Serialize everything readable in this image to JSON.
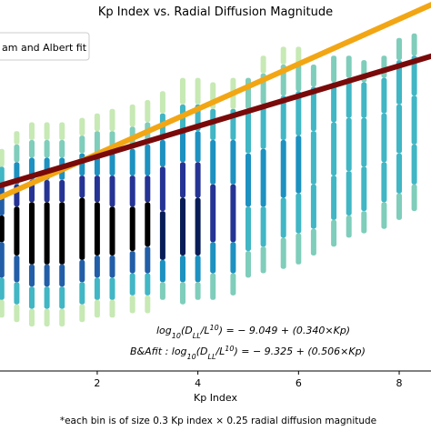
{
  "chart_data": {
    "type": "scatter",
    "title": "Kp Index vs. Radial Diffusion Magnitude",
    "xlabel": "Kp Index",
    "ylabel": "",
    "xlim": [
      0.05,
      8.65
    ],
    "ylim": [
      -13.2,
      -5.4
    ],
    "x_ticks": [
      2,
      4,
      6,
      8
    ],
    "x_tick_labels": [
      "2",
      "4",
      "6",
      "8"
    ],
    "grid": false,
    "legend": {
      "placement": "top-left",
      "entries": [
        "am and Albert fit"
      ]
    },
    "colorscale": [
      "#ffffcc",
      "#c7e9b4",
      "#7fcdbb",
      "#41b6c4",
      "#1d91c0",
      "#225ea8",
      "#253494",
      "#081d58",
      "#000000"
    ],
    "bin_size_note": "*each bin is of size 0.3 Kp index × 0.25 radial diffusion magnitude",
    "density_columns": [
      {
        "kp": 0.1,
        "segments": [
          [
            -12.0,
            -11.6,
            1
          ],
          [
            -11.6,
            -11.1,
            3
          ],
          [
            -11.1,
            -10.3,
            5
          ],
          [
            -10.3,
            -9.7,
            8
          ],
          [
            -9.7,
            -9.0,
            5
          ],
          [
            -9.0,
            -8.6,
            3
          ],
          [
            -8.6,
            -8.2,
            1
          ]
        ]
      },
      {
        "kp": 0.4,
        "segments": [
          [
            -12.1,
            -11.7,
            1
          ],
          [
            -11.7,
            -11.2,
            3
          ],
          [
            -11.2,
            -10.6,
            5
          ],
          [
            -10.6,
            -9.5,
            8
          ],
          [
            -9.5,
            -9.0,
            6
          ],
          [
            -9.0,
            -8.5,
            4
          ],
          [
            -8.5,
            -8.1,
            2
          ],
          [
            -8.1,
            -7.8,
            1
          ]
        ]
      },
      {
        "kp": 0.7,
        "segments": [
          [
            -12.2,
            -11.8,
            1
          ],
          [
            -11.8,
            -11.3,
            3
          ],
          [
            -11.3,
            -10.8,
            5
          ],
          [
            -10.8,
            -9.4,
            8
          ],
          [
            -9.4,
            -8.9,
            6
          ],
          [
            -8.9,
            -8.4,
            4
          ],
          [
            -8.4,
            -8.0,
            2
          ],
          [
            -8.0,
            -7.6,
            1
          ]
        ]
      },
      {
        "kp": 1.0,
        "segments": [
          [
            -12.2,
            -11.8,
            1
          ],
          [
            -11.8,
            -11.3,
            3
          ],
          [
            -11.3,
            -10.8,
            5
          ],
          [
            -10.8,
            -9.4,
            8
          ],
          [
            -9.4,
            -8.9,
            6
          ],
          [
            -8.9,
            -8.4,
            4
          ],
          [
            -8.4,
            -8.0,
            2
          ],
          [
            -8.0,
            -7.6,
            1
          ]
        ]
      },
      {
        "kp": 1.3,
        "segments": [
          [
            -12.2,
            -11.8,
            1
          ],
          [
            -11.8,
            -11.3,
            3
          ],
          [
            -11.3,
            -10.8,
            5
          ],
          [
            -10.8,
            -9.4,
            8
          ],
          [
            -9.4,
            -8.9,
            6
          ],
          [
            -8.9,
            -8.4,
            4
          ],
          [
            -8.4,
            -8.0,
            2
          ],
          [
            -8.0,
            -7.6,
            1
          ]
        ]
      },
      {
        "kp": 1.7,
        "segments": [
          [
            -12.1,
            -11.7,
            1
          ],
          [
            -11.7,
            -11.2,
            3
          ],
          [
            -11.2,
            -10.7,
            5
          ],
          [
            -10.7,
            -9.3,
            8
          ],
          [
            -9.3,
            -8.8,
            6
          ],
          [
            -8.8,
            -8.3,
            4
          ],
          [
            -8.3,
            -7.9,
            2
          ],
          [
            -7.9,
            -7.5,
            1
          ]
        ]
      },
      {
        "kp": 2.0,
        "segments": [
          [
            -12.0,
            -11.6,
            1
          ],
          [
            -11.6,
            -11.1,
            3
          ],
          [
            -11.1,
            -10.6,
            5
          ],
          [
            -10.6,
            -9.4,
            8
          ],
          [
            -9.4,
            -8.8,
            6
          ],
          [
            -8.8,
            -8.3,
            4
          ],
          [
            -8.3,
            -7.8,
            2
          ],
          [
            -7.8,
            -7.4,
            1
          ]
        ]
      },
      {
        "kp": 2.3,
        "segments": [
          [
            -12.0,
            -11.6,
            1
          ],
          [
            -11.6,
            -11.1,
            3
          ],
          [
            -11.1,
            -10.6,
            5
          ],
          [
            -10.6,
            -9.5,
            8
          ],
          [
            -9.5,
            -8.8,
            6
          ],
          [
            -8.8,
            -8.3,
            4
          ],
          [
            -8.3,
            -7.8,
            2
          ],
          [
            -7.8,
            -7.3,
            1
          ]
        ]
      },
      {
        "kp": 2.7,
        "segments": [
          [
            -11.9,
            -11.5,
            1
          ],
          [
            -11.5,
            -11.0,
            3
          ],
          [
            -11.0,
            -10.5,
            5
          ],
          [
            -10.5,
            -9.5,
            8
          ],
          [
            -9.5,
            -8.8,
            6
          ],
          [
            -8.8,
            -8.2,
            4
          ],
          [
            -8.2,
            -7.7,
            2
          ],
          [
            -7.7,
            -7.2,
            1
          ]
        ]
      },
      {
        "kp": 3.0,
        "segments": [
          [
            -11.9,
            -11.5,
            1
          ],
          [
            -11.5,
            -11.0,
            3
          ],
          [
            -11.0,
            -10.4,
            5
          ],
          [
            -10.4,
            -9.4,
            8
          ],
          [
            -9.4,
            -8.8,
            6
          ],
          [
            -8.8,
            -8.1,
            4
          ],
          [
            -8.1,
            -7.6,
            2
          ],
          [
            -7.6,
            -7.1,
            1
          ]
        ]
      },
      {
        "kp": 3.3,
        "segments": [
          [
            -11.6,
            -11.2,
            2
          ],
          [
            -11.2,
            -10.7,
            4
          ],
          [
            -10.7,
            -9.6,
            7
          ],
          [
            -9.6,
            -8.6,
            6
          ],
          [
            -8.6,
            -8.0,
            4
          ],
          [
            -8.0,
            -7.4,
            3
          ],
          [
            -7.4,
            -6.9,
            1
          ]
        ]
      },
      {
        "kp": 3.7,
        "segments": [
          [
            -11.7,
            -11.2,
            2
          ],
          [
            -11.2,
            -10.6,
            4
          ],
          [
            -10.6,
            -9.3,
            7
          ],
          [
            -9.3,
            -8.5,
            6
          ],
          [
            -8.5,
            -7.8,
            4
          ],
          [
            -7.8,
            -7.2,
            3
          ],
          [
            -7.2,
            -6.6,
            1
          ]
        ]
      },
      {
        "kp": 4.0,
        "segments": [
          [
            -11.6,
            -11.2,
            2
          ],
          [
            -11.2,
            -10.6,
            4
          ],
          [
            -10.6,
            -9.3,
            7
          ],
          [
            -9.3,
            -8.5,
            6
          ],
          [
            -8.5,
            -7.8,
            4
          ],
          [
            -7.8,
            -7.2,
            3
          ],
          [
            -7.2,
            -6.6,
            1
          ]
        ]
      },
      {
        "kp": 4.3,
        "segments": [
          [
            -11.6,
            -11.0,
            2
          ],
          [
            -11.0,
            -10.3,
            4
          ],
          [
            -10.3,
            -9.0,
            6
          ],
          [
            -9.0,
            -8.0,
            4
          ],
          [
            -8.0,
            -7.3,
            3
          ],
          [
            -7.3,
            -6.7,
            1
          ]
        ]
      },
      {
        "kp": 4.7,
        "segments": [
          [
            -11.5,
            -11.0,
            2
          ],
          [
            -11.0,
            -10.3,
            4
          ],
          [
            -10.3,
            -9.0,
            6
          ],
          [
            -9.0,
            -8.0,
            4
          ],
          [
            -8.0,
            -7.3,
            3
          ],
          [
            -7.3,
            -6.6,
            1
          ]
        ]
      },
      {
        "kp": 5.0,
        "segments": [
          [
            -11.1,
            -10.5,
            2
          ],
          [
            -10.5,
            -9.5,
            3
          ],
          [
            -9.5,
            -8.3,
            4
          ],
          [
            -8.3,
            -7.3,
            3
          ],
          [
            -7.3,
            -6.6,
            2
          ]
        ]
      },
      {
        "kp": 5.3,
        "segments": [
          [
            -11.0,
            -10.4,
            2
          ],
          [
            -10.4,
            -9.5,
            3
          ],
          [
            -9.5,
            -8.2,
            4
          ],
          [
            -8.2,
            -7.2,
            3
          ],
          [
            -7.2,
            -6.5,
            2
          ],
          [
            -6.5,
            -6.1,
            1
          ]
        ]
      },
      {
        "kp": 5.7,
        "segments": [
          [
            -10.9,
            -10.2,
            2
          ],
          [
            -10.2,
            -9.3,
            3
          ],
          [
            -9.3,
            -8.0,
            4
          ],
          [
            -8.0,
            -7.0,
            3
          ],
          [
            -7.0,
            -6.3,
            2
          ],
          [
            -6.3,
            -5.9,
            1
          ]
        ]
      },
      {
        "kp": 6.0,
        "segments": [
          [
            -10.8,
            -10.1,
            2
          ],
          [
            -10.1,
            -9.2,
            3
          ],
          [
            -9.2,
            -7.9,
            4
          ],
          [
            -7.9,
            -6.9,
            3
          ],
          [
            -6.9,
            -6.3,
            2
          ],
          [
            -6.3,
            -5.9,
            1
          ]
        ]
      },
      {
        "kp": 6.3,
        "segments": [
          [
            -10.6,
            -10.0,
            2
          ],
          [
            -10.0,
            -9.0,
            3
          ],
          [
            -9.0,
            -7.8,
            3
          ],
          [
            -7.8,
            -6.8,
            3
          ],
          [
            -6.8,
            -6.3,
            2
          ]
        ]
      },
      {
        "kp": 6.7,
        "segments": [
          [
            -10.4,
            -9.8,
            2
          ],
          [
            -9.8,
            -8.8,
            3
          ],
          [
            -8.8,
            -7.6,
            3
          ],
          [
            -7.6,
            -6.7,
            3
          ],
          [
            -6.7,
            -6.1,
            2
          ]
        ]
      },
      {
        "kp": 7.0,
        "segments": [
          [
            -10.2,
            -9.7,
            2
          ],
          [
            -9.7,
            -8.7,
            3
          ],
          [
            -8.7,
            -7.5,
            3
          ],
          [
            -7.5,
            -6.6,
            3
          ],
          [
            -6.6,
            -6.1,
            2
          ]
        ]
      },
      {
        "kp": 7.3,
        "segments": [
          [
            -10.1,
            -9.6,
            2
          ],
          [
            -9.6,
            -8.6,
            3
          ],
          [
            -8.6,
            -7.5,
            3
          ],
          [
            -7.5,
            -6.7,
            3
          ],
          [
            -6.7,
            -6.2,
            2
          ]
        ]
      },
      {
        "kp": 7.7,
        "segments": [
          [
            -10.0,
            -9.4,
            2
          ],
          [
            -9.4,
            -8.5,
            3
          ],
          [
            -8.5,
            -7.4,
            3
          ],
          [
            -7.4,
            -6.6,
            3
          ],
          [
            -6.6,
            -6.1,
            2
          ]
        ]
      },
      {
        "kp": 8.0,
        "segments": [
          [
            -9.8,
            -9.2,
            2
          ],
          [
            -9.2,
            -8.3,
            3
          ],
          [
            -8.3,
            -7.2,
            3
          ],
          [
            -7.2,
            -6.2,
            3
          ],
          [
            -6.2,
            -5.7,
            2
          ]
        ]
      },
      {
        "kp": 8.3,
        "segments": [
          [
            -9.6,
            -9.0,
            2
          ],
          [
            -9.0,
            -8.1,
            3
          ],
          [
            -8.1,
            -7.0,
            3
          ],
          [
            -7.0,
            -6.1,
            3
          ],
          [
            -6.1,
            -5.6,
            2
          ]
        ]
      }
    ],
    "series": [
      {
        "color": "#7a0a0a",
        "intercept": -9.049,
        "slope": 0.34
      },
      {
        "color": "#f2a614",
        "intercept": -9.325,
        "slope": 0.506
      }
    ],
    "annotations": {
      "fit_eq_parts": [
        "log",
        "10",
        "(D",
        "LL",
        "/L",
        "10",
        ") = − 9.049 + (0.340×Kp)"
      ],
      "ba_eq_parts": [
        "B&Afit : log",
        "10",
        "(D",
        "LL",
        "/L",
        "10",
        ") = − 9.325 + (0.506×Kp)"
      ]
    }
  }
}
